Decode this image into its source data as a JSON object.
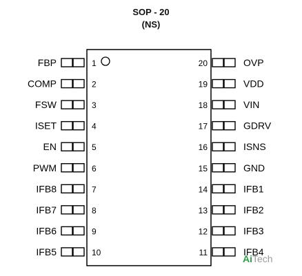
{
  "title": "SOP - 20",
  "subtitle": "(NS)",
  "left_pins": [
    {
      "number": "1",
      "name": "FBP"
    },
    {
      "number": "2",
      "name": "COMP"
    },
    {
      "number": "3",
      "name": "FSW"
    },
    {
      "number": "4",
      "name": "ISET"
    },
    {
      "number": "5",
      "name": "EN"
    },
    {
      "number": "6",
      "name": "PWM"
    },
    {
      "number": "7",
      "name": "IFB8"
    },
    {
      "number": "8",
      "name": "IFB7"
    },
    {
      "number": "9",
      "name": "IFB6"
    },
    {
      "number": "10",
      "name": "IFB5"
    }
  ],
  "right_pins": [
    {
      "number": "20",
      "name": "OVP"
    },
    {
      "number": "19",
      "name": "VDD"
    },
    {
      "number": "18",
      "name": "VIN"
    },
    {
      "number": "17",
      "name": "GDRV"
    },
    {
      "number": "16",
      "name": "ISNS"
    },
    {
      "number": "15",
      "name": "GND"
    },
    {
      "number": "14",
      "name": "IFB1"
    },
    {
      "number": "13",
      "name": "IFB2"
    },
    {
      "number": "12",
      "name": "IFB3"
    },
    {
      "number": "11",
      "name": "IFB4"
    }
  ],
  "watermark": {
    "prefix": "Ai",
    "suffix": "Tech"
  },
  "colors": {
    "outline": "#000000",
    "text": "#000000",
    "watermark_prefix": "#2e9e47",
    "watermark_suffix": "#9a9a9a"
  }
}
